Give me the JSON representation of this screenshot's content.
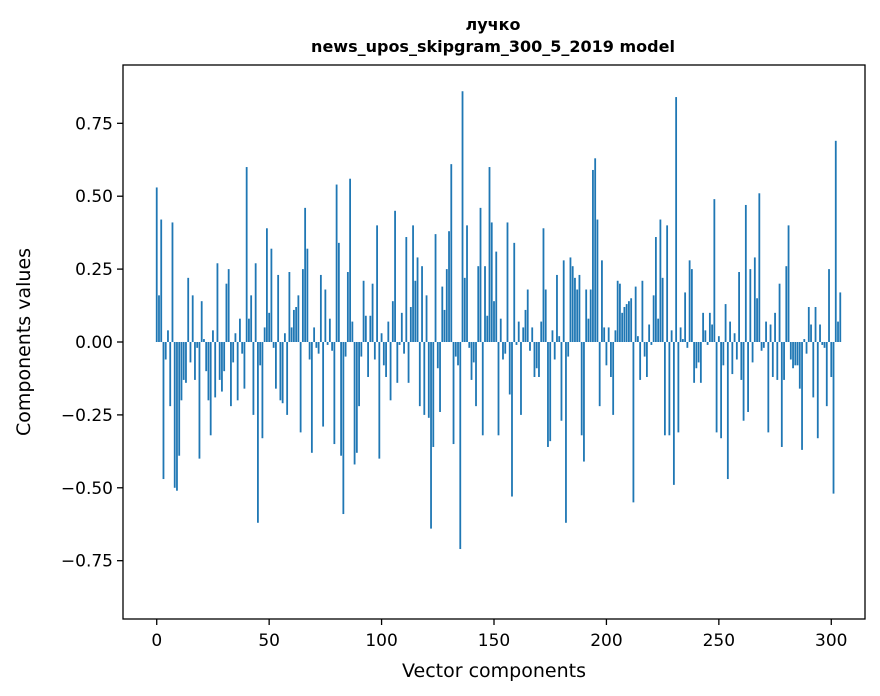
{
  "chart_data": {
    "type": "bar",
    "title_line1": "лучко",
    "title_line2": "news_upos_skipgram_300_5_2019 model",
    "xlabel": "Vector components",
    "ylabel": "Components values",
    "xlim": [
      -15,
      315
    ],
    "ylim": [
      -0.95,
      0.95
    ],
    "xticks": [
      0,
      50,
      100,
      150,
      200,
      250,
      300
    ],
    "yticks": [
      0.75,
      0.5,
      0.25,
      0.0,
      -0.25,
      -0.5,
      -0.75
    ],
    "ytick_labels": [
      "0.75",
      "0.50",
      "0.25",
      "0.00",
      "−0.25",
      "−0.50",
      "−0.75"
    ],
    "xtick_labels": [
      "0",
      "50",
      "100",
      "150",
      "200",
      "250",
      "300"
    ],
    "bar_color": "#1f77b4",
    "values": [
      0.53,
      0.16,
      0.42,
      -0.47,
      -0.06,
      0.04,
      -0.22,
      0.41,
      -0.5,
      -0.51,
      -0.39,
      -0.2,
      -0.13,
      -0.14,
      0.22,
      -0.07,
      0.16,
      -0.13,
      -0.02,
      -0.4,
      0.14,
      0.01,
      -0.1,
      -0.2,
      -0.32,
      0.04,
      -0.19,
      0.27,
      -0.13,
      -0.17,
      -0.1,
      0.2,
      0.25,
      -0.22,
      -0.07,
      0.03,
      -0.2,
      0.08,
      -0.04,
      -0.16,
      0.6,
      0.08,
      0.16,
      -0.25,
      0.27,
      -0.62,
      -0.08,
      -0.33,
      0.05,
      0.39,
      0.1,
      0.32,
      -0.02,
      -0.16,
      0.23,
      -0.2,
      -0.21,
      0.03,
      -0.25,
      0.24,
      0.05,
      0.11,
      0.12,
      0.16,
      -0.31,
      0.25,
      0.46,
      0.32,
      -0.06,
      -0.38,
      0.05,
      -0.02,
      -0.04,
      0.23,
      -0.29,
      0.18,
      -0.01,
      0.08,
      -0.03,
      -0.35,
      0.54,
      0.34,
      -0.39,
      -0.59,
      -0.05,
      0.24,
      0.56,
      0.07,
      -0.42,
      -0.38,
      -0.22,
      -0.05,
      0.21,
      0.09,
      -0.12,
      0.09,
      0.2,
      -0.06,
      0.4,
      -0.4,
      0.03,
      -0.08,
      -0.12,
      0.07,
      -0.2,
      0.14,
      0.45,
      -0.14,
      -0.01,
      0.1,
      -0.04,
      0.36,
      -0.14,
      0.12,
      0.4,
      0.21,
      0.29,
      -0.22,
      0.26,
      -0.25,
      0.16,
      -0.26,
      -0.64,
      -0.36,
      0.37,
      -0.09,
      -0.24,
      0.19,
      0.11,
      0.25,
      0.38,
      0.61,
      -0.35,
      -0.05,
      -0.08,
      -0.71,
      0.86,
      0.22,
      0.4,
      -0.02,
      -0.13,
      -0.07,
      -0.22,
      0.26,
      0.46,
      -0.32,
      0.26,
      0.09,
      0.6,
      0.41,
      0.14,
      0.31,
      -0.32,
      0.08,
      -0.06,
      -0.04,
      0.41,
      -0.18,
      -0.53,
      0.34,
      -0.01,
      0.07,
      -0.25,
      0.05,
      0.11,
      0.18,
      -0.03,
      0.05,
      -0.12,
      -0.09,
      -0.12,
      0.07,
      0.39,
      0.18,
      -0.36,
      -0.34,
      0.04,
      -0.06,
      0.23,
      0.02,
      -0.27,
      0.28,
      -0.62,
      -0.05,
      0.29,
      0.26,
      0.22,
      0.18,
      0.23,
      -0.32,
      -0.41,
      0.18,
      0.08,
      0.18,
      0.59,
      0.63,
      0.42,
      -0.22,
      0.28,
      0.05,
      -0.08,
      0.05,
      -0.12,
      -0.25,
      0.04,
      0.21,
      0.2,
      0.1,
      0.12,
      0.13,
      0.14,
      0.15,
      -0.55,
      0.19,
      0.02,
      -0.13,
      0.21,
      -0.05,
      -0.12,
      0.06,
      -0.01,
      0.16,
      0.36,
      0.08,
      0.42,
      0.22,
      -0.32,
      0.4,
      -0.32,
      0.04,
      -0.49,
      0.84,
      -0.31,
      0.05,
      0.01,
      0.17,
      -0.02,
      0.28,
      0.25,
      -0.14,
      -0.09,
      -0.07,
      -0.14,
      0.1,
      0.04,
      -0.01,
      0.1,
      0.06,
      0.49,
      -0.31,
      0.02,
      -0.33,
      -0.08,
      0.13,
      -0.47,
      0.07,
      -0.11,
      0.03,
      -0.06,
      0.24,
      -0.13,
      -0.27,
      0.47,
      -0.24,
      0.25,
      -0.07,
      0.29,
      0.15,
      0.51,
      -0.03,
      -0.02,
      0.07,
      -0.31,
      0.06,
      -0.12,
      0.1,
      -0.13,
      0.2,
      -0.36,
      -0.13,
      0.26,
      0.4,
      -0.06,
      -0.09,
      -0.08,
      -0.08,
      -0.16,
      -0.37,
      0.01,
      -0.04,
      0.12,
      0.06,
      -0.19,
      0.12,
      -0.33,
      0.06,
      -0.01,
      -0.02,
      -0.22,
      0.25,
      -0.12,
      -0.52,
      0.69,
      0.07,
      0.17
    ]
  }
}
